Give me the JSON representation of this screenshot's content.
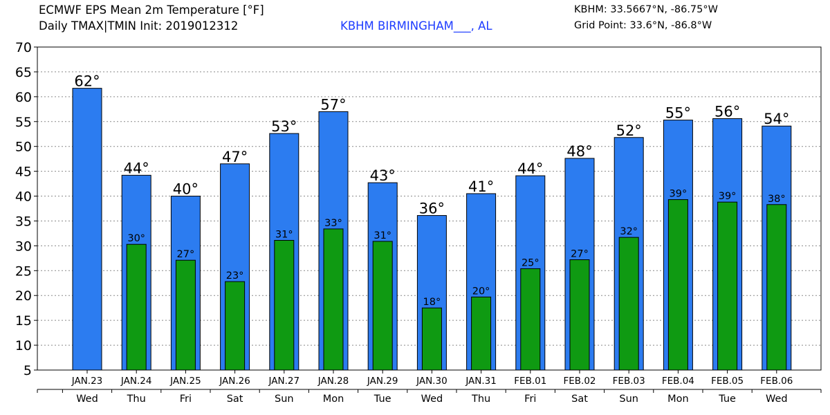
{
  "header": {
    "title": "ECMWF EPS Mean 2m Temperature [°F]",
    "subtitle": "Daily TMAX|TMIN Init: 2019012312",
    "station": "KBHM BIRMINGHAM___, AL",
    "coords": "KBHM: 33.5667°N, -86.75°W",
    "grid_point": "Grid Point: 33.6°N, -86.8°W"
  },
  "colors": {
    "tmax": "#2c7cf0",
    "tmin": "#0f9a12",
    "grid": "#888888"
  },
  "chart_data": {
    "type": "bar",
    "categories": [
      "JAN.23",
      "JAN.24",
      "JAN.25",
      "JAN.26",
      "JAN.27",
      "JAN.28",
      "JAN.29",
      "JAN.30",
      "JAN.31",
      "FEB.01",
      "FEB.02",
      "FEB.03",
      "FEB.04",
      "FEB.05",
      "FEB.06"
    ],
    "weekdays": [
      "Wed",
      "Thu",
      "Fri",
      "Sat",
      "Sun",
      "Mon",
      "Tue",
      "Wed",
      "Thu",
      "Fri",
      "Sat",
      "Sun",
      "Mon",
      "Tue",
      "Wed"
    ],
    "series": [
      {
        "key": "tmax",
        "values": [
          61.7,
          44.2,
          40.0,
          46.5,
          52.6,
          57.0,
          42.7,
          36.1,
          40.5,
          44.1,
          47.6,
          51.8,
          55.3,
          55.6,
          54.1
        ],
        "labels": [
          "62°",
          "44°",
          "40°",
          "47°",
          "53°",
          "57°",
          "43°",
          "36°",
          "41°",
          "44°",
          "48°",
          "52°",
          "55°",
          "56°",
          "54°"
        ]
      },
      {
        "key": "tmin",
        "values": [
          null,
          30.3,
          27.1,
          22.8,
          31.1,
          33.4,
          30.9,
          17.5,
          19.7,
          25.4,
          27.2,
          31.7,
          39.3,
          38.8,
          38.3
        ],
        "labels": [
          null,
          "30°",
          "27°",
          "23°",
          "31°",
          "33°",
          "31°",
          "18°",
          "20°",
          "25°",
          "27°",
          "32°",
          "39°",
          "39°",
          "38°"
        ]
      }
    ],
    "yticks": [
      5,
      10,
      15,
      20,
      25,
      30,
      35,
      40,
      45,
      50,
      55,
      60,
      65,
      70
    ],
    "ylim": [
      5,
      70
    ],
    "grid": true
  }
}
